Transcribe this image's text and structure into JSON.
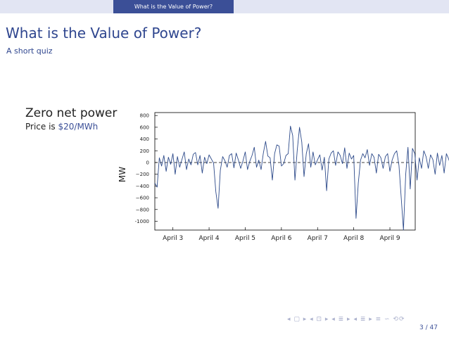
{
  "header": {
    "section_title": "What is the Value of Power?"
  },
  "frame": {
    "title": "What is the Value of Power?",
    "subtitle": "A short quiz"
  },
  "annotation": {
    "main": "Zero net power",
    "price_prefix": "Price is ",
    "price_value": "$20/MWh"
  },
  "footer": {
    "page": "3 / 47",
    "nav_glyphs": "◂ ▢ ▸ ◂ ⊡ ▸ ◂ ≣ ▸ ◂ ≣ ▸ ≡ ∽ ⟲⟳"
  },
  "colors": {
    "header_bg": "#e2e5f3",
    "header_accent": "#3b4f97",
    "title": "#2f468f",
    "series": "#2d4a8a"
  },
  "chart_data": {
    "type": "line",
    "title": "",
    "xlabel": "",
    "ylabel": "MW",
    "ylim": [
      -1150,
      850
    ],
    "yticks": [
      800,
      600,
      400,
      200,
      0,
      -200,
      -400,
      -600,
      -800,
      -1000
    ],
    "ytick_labels": [
      "800",
      "600",
      "400",
      "200",
      "0",
      "−200",
      "−400",
      "−600",
      "−800",
      "-1000"
    ],
    "xlim": [
      2.5,
      9.7
    ],
    "xticks": [
      3,
      4,
      5,
      6,
      7,
      8,
      9
    ],
    "xtick_labels": [
      "April 3",
      "April 4",
      "April 5",
      "April 6",
      "April 7",
      "April 8",
      "April 9"
    ],
    "reference_line": {
      "y": 0,
      "style": "dashed"
    },
    "series": [
      {
        "x_start": 2.5,
        "x_step": 0.0625,
        "values": [
          -350,
          -420,
          80,
          -60,
          120,
          -150,
          90,
          -30,
          150,
          -200,
          100,
          -80,
          50,
          180,
          -120,
          60,
          -40,
          140,
          170,
          -40,
          120,
          -180,
          90,
          -20,
          130,
          60,
          -10,
          -500,
          -780,
          -130,
          100,
          30,
          -80,
          120,
          150,
          -90,
          160,
          40,
          -100,
          30,
          180,
          -120,
          20,
          120,
          260,
          -80,
          40,
          -120,
          160,
          360,
          110,
          80,
          -300,
          150,
          300,
          280,
          -60,
          -20,
          120,
          150,
          620,
          460,
          -300,
          200,
          600,
          350,
          -240,
          150,
          320,
          -80,
          180,
          -40,
          50,
          130,
          -130,
          90,
          -480,
          60,
          160,
          200,
          -50,
          180,
          120,
          -20,
          250,
          -100,
          160,
          60,
          120,
          -950,
          -350,
          40,
          150,
          80,
          220,
          -50,
          150,
          90,
          -180,
          140,
          80,
          -100,
          100,
          150,
          -150,
          40,
          150,
          200,
          -50,
          -600,
          -1150,
          -200,
          260,
          -450,
          240,
          150,
          -300,
          80,
          -100,
          200,
          100,
          -100,
          130,
          50,
          -200,
          160,
          -50,
          120,
          -180,
          150,
          60,
          -60,
          120,
          70,
          -200,
          150,
          90,
          80,
          -60,
          150,
          80,
          -120,
          120,
          50,
          160,
          -150,
          100,
          90,
          180,
          -40,
          120,
          -20,
          150,
          60,
          120,
          80
        ]
      }
    ]
  }
}
